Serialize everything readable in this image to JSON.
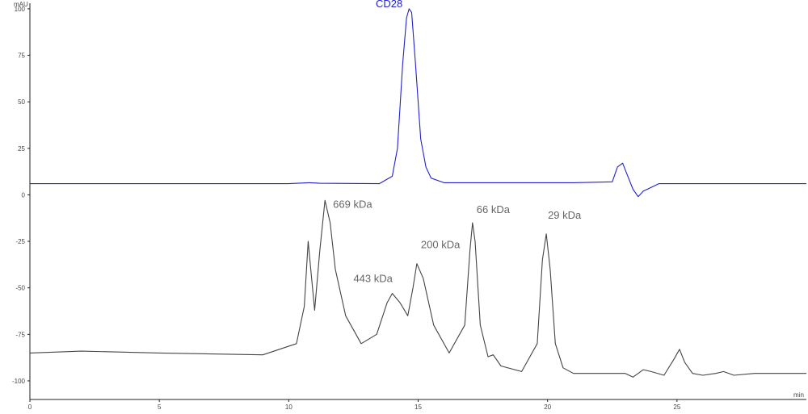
{
  "chart_data": {
    "type": "line",
    "xlabel": "min",
    "ylabel": "mAU",
    "xlim": [
      0,
      30
    ],
    "ylim": [
      -110,
      103
    ],
    "x_ticks": [
      0,
      5,
      10,
      15,
      20,
      25
    ],
    "y_ticks": [
      100,
      75,
      50,
      25,
      0,
      -25,
      -50,
      -75,
      -100
    ],
    "grid": false,
    "series": [
      {
        "name": "CD28",
        "color": "#2222cc",
        "x": [
          0,
          5,
          10,
          10.8,
          11.2,
          13.5,
          14.0,
          14.2,
          14.4,
          14.55,
          14.65,
          14.75,
          14.9,
          15.1,
          15.3,
          15.5,
          16,
          18,
          21,
          22.5,
          22.7,
          22.9,
          23.1,
          23.3,
          23.5,
          23.7,
          24.0,
          24.3,
          25,
          30
        ],
        "y": [
          6,
          6,
          6,
          6.5,
          6.2,
          6,
          10,
          25,
          70,
          95,
          100,
          98,
          70,
          30,
          15,
          9,
          6.5,
          6.5,
          6.5,
          7,
          15,
          17,
          10,
          3,
          -1,
          2,
          4,
          6,
          6,
          6
        ],
        "peak_label": "CD28"
      },
      {
        "name": "",
        "color": "#444444",
        "x": [
          0,
          2,
          5,
          9,
          10.3,
          10.6,
          10.75,
          10.85,
          11.0,
          11.2,
          11.4,
          11.6,
          11.8,
          12.2,
          12.8,
          13.4,
          13.8,
          14.0,
          14.3,
          14.6,
          14.8,
          14.95,
          15.2,
          15.6,
          16.2,
          16.8,
          17.0,
          17.1,
          17.2,
          17.4,
          17.7,
          17.9,
          18.2,
          19.0,
          19.6,
          19.8,
          19.95,
          20.1,
          20.3,
          20.6,
          21,
          23,
          23.3,
          23.7,
          24.0,
          24.5,
          24.9,
          25.1,
          25.3,
          25.6,
          26.0,
          26.5,
          26.8,
          27.2,
          28,
          30
        ],
        "y": [
          -85,
          -84,
          -85,
          -86,
          -80,
          -60,
          -25,
          -40,
          -62,
          -30,
          -3,
          -15,
          -40,
          -65,
          -80,
          -75,
          -58,
          -53,
          -58,
          -65,
          -50,
          -37,
          -45,
          -70,
          -85,
          -70,
          -30,
          -15,
          -25,
          -70,
          -87,
          -86,
          -92,
          -95,
          -80,
          -35,
          -21,
          -40,
          -80,
          -93,
          -96,
          -96,
          -98,
          -94,
          -95,
          -97,
          -88,
          -83,
          -90,
          -96,
          -97,
          -96,
          -95,
          -97,
          -96,
          -96
        ],
        "labels": [
          {
            "text": "669 kDa",
            "x": 11.4,
            "y": -3
          },
          {
            "text": "443 kDa",
            "x": 14.0,
            "y": -53
          },
          {
            "text": "200 kDa",
            "x": 14.95,
            "y": -37
          },
          {
            "text": "66 kDa",
            "x": 17.1,
            "y": -15
          },
          {
            "text": "29 kDa",
            "x": 19.95,
            "y": -21
          }
        ]
      }
    ]
  }
}
